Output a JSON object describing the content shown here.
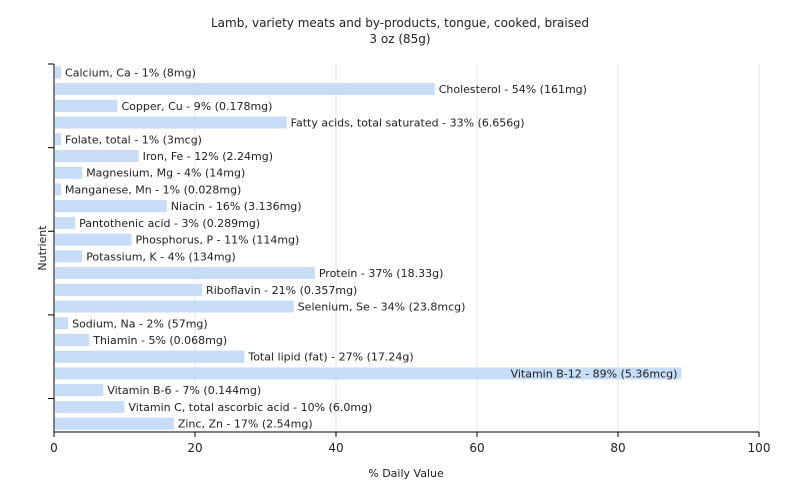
{
  "chart_data": {
    "type": "bar",
    "orientation": "horizontal",
    "title": "Lamb, variety meats and by-products, tongue, cooked, braised",
    "subtitle": "3 oz (85g)",
    "xlabel": "% Daily Value",
    "ylabel": "Nutrient",
    "xlim": [
      0,
      100
    ],
    "xticks": [
      0,
      20,
      40,
      60,
      80,
      100
    ],
    "grid": true,
    "bar_color": "#c6dcf7",
    "categories": [
      "Calcium, Ca",
      "Cholesterol",
      "Copper, Cu",
      "Fatty acids, total saturated",
      "Folate, total",
      "Iron, Fe",
      "Magnesium, Mg",
      "Manganese, Mn",
      "Niacin",
      "Pantothenic acid",
      "Phosphorus, P",
      "Potassium, K",
      "Protein",
      "Riboflavin",
      "Selenium, Se",
      "Sodium, Na",
      "Thiamin",
      "Total lipid (fat)",
      "Vitamin B-12",
      "Vitamin B-6",
      "Vitamin C, total ascorbic acid",
      "Zinc, Zn"
    ],
    "values": [
      1,
      54,
      9,
      33,
      1,
      12,
      4,
      1,
      16,
      3,
      11,
      4,
      37,
      21,
      34,
      2,
      5,
      27,
      89,
      7,
      10,
      17
    ],
    "labels": [
      "Calcium, Ca - 1% (8mg)",
      "Cholesterol - 54% (161mg)",
      "Copper, Cu - 9% (0.178mg)",
      "Fatty acids, total saturated - 33% (6.656g)",
      "Folate, total - 1% (3mcg)",
      "Iron, Fe - 12% (2.24mg)",
      "Magnesium, Mg - 4% (14mg)",
      "Manganese, Mn - 1% (0.028mg)",
      "Niacin - 16% (3.136mg)",
      "Pantothenic acid - 3% (0.289mg)",
      "Phosphorus, P - 11% (114mg)",
      "Potassium, K - 4% (134mg)",
      "Protein - 37% (18.33g)",
      "Riboflavin - 21% (0.357mg)",
      "Selenium, Se - 34% (23.8mcg)",
      "Sodium, Na - 2% (57mg)",
      "Thiamin - 5% (0.068mg)",
      "Total lipid (fat) - 27% (17.24g)",
      "Vitamin B-12 - 89% (5.36mcg)",
      "Vitamin B-6 - 7% (0.144mg)",
      "Vitamin C, total ascorbic acid - 10% (6.0mg)",
      "Zinc, Zn - 17% (2.54mg)"
    ]
  }
}
